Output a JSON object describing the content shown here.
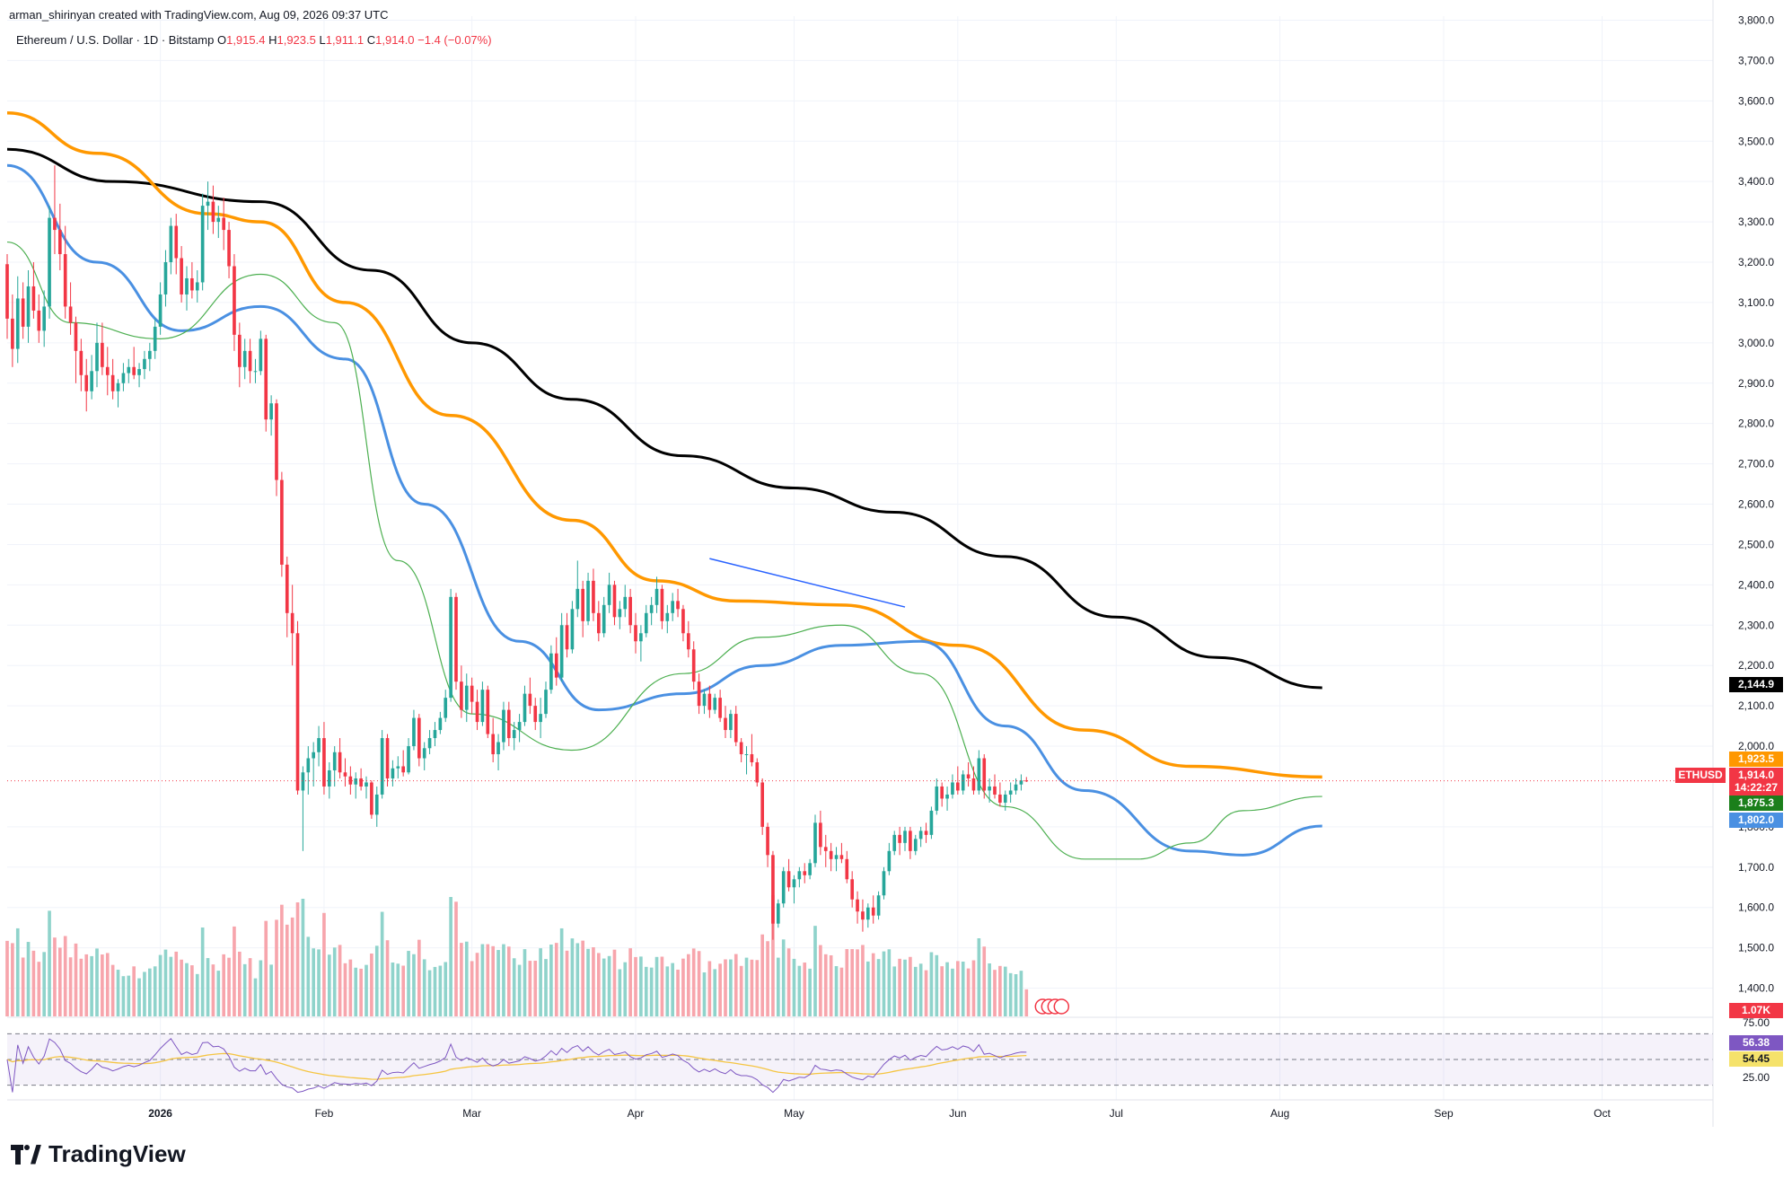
{
  "credit": "arman_shirinyan created with TradingView.com, Aug 09, 2026 09:37 UTC",
  "legend": {
    "instrument": "Ethereum / U.S. Dollar · 1D · Bitstamp",
    "o_label": "O",
    "o": "1,915.4",
    "h_label": "H",
    "h": "1,923.5",
    "l_label": "L",
    "l": "1,911.1",
    "c_label": "C",
    "c": "1,914.0",
    "change": "−1.4 (−0.07%)"
  },
  "brand": "TradingView",
  "price_tags": {
    "sma200": "2,144.9",
    "sma100": "1,923.5",
    "symbol": "ETHUSD",
    "last": "1,914.0",
    "countdown": "14:22:27",
    "ema20": "1,875.3",
    "sma50": "1,802.0",
    "volume": "1.07K",
    "rsi": "56.38",
    "rsi_ma": "54.45",
    "rsi_level": "75.00",
    "rsi_low": "25.00"
  },
  "colors": {
    "up": "#26a69a",
    "down": "#f23645",
    "vol_up": "#8fd3cb",
    "vol_down": "#f7a5ac",
    "sma200": "#000000",
    "sma100": "#ff9800",
    "sma50": "#4a90e2",
    "ema20": "#4caf50",
    "trendline": "#2962ff",
    "rsi_line": "#7e57c2",
    "rsi_ma": "#f5c542"
  },
  "chart_data": {
    "type": "candlestick",
    "title": "Ethereum / U.S. Dollar · 1D · Bitstamp",
    "x_tick_labels": [
      "2026",
      "Feb",
      "Mar",
      "Apr",
      "May",
      "Jun",
      "Jul",
      "Aug",
      "Sep",
      "Oct"
    ],
    "x_ticks": [
      "2026-01-01",
      "2026-02-01",
      "2026-03-01",
      "2026-04-01",
      "2026-05-01",
      "2026-06-01",
      "2026-07-01",
      "2026-08-01",
      "2026-09-01",
      "2026-10-01"
    ],
    "x_range": [
      "2025-12-03",
      "2026-10-22"
    ],
    "y_ticks": [
      1400,
      1500,
      1600,
      1700,
      1800,
      2000,
      2100,
      2200,
      2300,
      2400,
      2500,
      2600,
      2700,
      2800,
      2900,
      3000,
      3100,
      3200,
      3300,
      3400,
      3500,
      3600,
      3700,
      3800
    ],
    "y_range": [
      1330,
      3810
    ],
    "grid": true,
    "candles_ohlc_from": "2025-12-03",
    "candles_ohlc": [
      [
        3195,
        3220,
        3010,
        3060
      ],
      [
        3060,
        3120,
        2940,
        2985
      ],
      [
        2985,
        3165,
        2950,
        3110
      ],
      [
        3110,
        3150,
        3010,
        3040
      ],
      [
        3040,
        3180,
        3000,
        3140
      ],
      [
        3140,
        3200,
        3060,
        3080
      ],
      [
        3080,
        3120,
        3000,
        3030
      ],
      [
        3030,
        3130,
        2990,
        3090
      ],
      [
        3090,
        3340,
        3060,
        3310
      ],
      [
        3310,
        3440,
        3220,
        3280
      ],
      [
        3280,
        3345,
        3180,
        3220
      ],
      [
        3220,
        3290,
        3060,
        3090
      ],
      [
        3090,
        3150,
        3020,
        3050
      ],
      [
        3050,
        3065,
        2900,
        2980
      ],
      [
        2980,
        3010,
        2880,
        2920
      ],
      [
        2920,
        2960,
        2830,
        2880
      ],
      [
        2880,
        2970,
        2860,
        2930
      ],
      [
        2930,
        3050,
        2890,
        3000
      ],
      [
        3000,
        3050,
        2920,
        2940
      ],
      [
        2940,
        2990,
        2870,
        2920
      ],
      [
        2920,
        2960,
        2860,
        2880
      ],
      [
        2880,
        2910,
        2840,
        2900
      ],
      [
        2900,
        2950,
        2880,
        2925
      ],
      [
        2925,
        2960,
        2900,
        2940
      ],
      [
        2940,
        2990,
        2910,
        2920
      ],
      [
        2920,
        2950,
        2890,
        2935
      ],
      [
        2935,
        2980,
        2910,
        2960
      ],
      [
        2960,
        3000,
        2930,
        2980
      ],
      [
        2980,
        3060,
        2960,
        3040
      ],
      [
        3040,
        3150,
        3020,
        3120
      ],
      [
        3120,
        3230,
        3090,
        3200
      ],
      [
        3200,
        3310,
        3170,
        3290
      ],
      [
        3290,
        3320,
        3170,
        3210
      ],
      [
        3210,
        3240,
        3100,
        3120
      ],
      [
        3120,
        3190,
        3080,
        3160
      ],
      [
        3160,
        3200,
        3110,
        3130
      ],
      [
        3130,
        3180,
        3100,
        3150
      ],
      [
        3150,
        3370,
        3130,
        3340
      ],
      [
        3340,
        3400,
        3280,
        3350
      ],
      [
        3350,
        3390,
        3270,
        3300
      ],
      [
        3300,
        3340,
        3260,
        3310
      ],
      [
        3310,
        3360,
        3230,
        3280
      ],
      [
        3280,
        3300,
        3160,
        3190
      ],
      [
        3190,
        3220,
        2980,
        3020
      ],
      [
        3020,
        3050,
        2890,
        2940
      ],
      [
        2940,
        3010,
        2910,
        2980
      ],
      [
        2980,
        3010,
        2900,
        2930
      ],
      [
        2930,
        2960,
        2900,
        2930
      ],
      [
        2930,
        3030,
        2920,
        3010
      ],
      [
        3010,
        3020,
        2780,
        2810
      ],
      [
        2810,
        2870,
        2770,
        2850
      ],
      [
        2850,
        2860,
        2620,
        2660
      ],
      [
        2660,
        2680,
        2420,
        2450
      ],
      [
        2450,
        2470,
        2270,
        2330
      ],
      [
        2330,
        2400,
        2200,
        2280
      ],
      [
        2280,
        2310,
        1880,
        1890
      ],
      [
        1890,
        1950,
        1740,
        1935
      ],
      [
        1935,
        2000,
        1880,
        1970
      ],
      [
        1970,
        2010,
        1900,
        1985
      ],
      [
        1985,
        2050,
        1950,
        2020
      ],
      [
        2020,
        2060,
        1880,
        1900
      ],
      [
        1900,
        1960,
        1870,
        1940
      ],
      [
        1940,
        2000,
        1900,
        1985
      ],
      [
        1985,
        2020,
        1920,
        1935
      ],
      [
        1935,
        1970,
        1900,
        1925
      ],
      [
        1925,
        1950,
        1880,
        1905
      ],
      [
        1905,
        1935,
        1870,
        1920
      ],
      [
        1920,
        1945,
        1890,
        1900
      ],
      [
        1900,
        1925,
        1870,
        1910
      ],
      [
        1910,
        1915,
        1820,
        1830
      ],
      [
        1830,
        1900,
        1800,
        1880
      ],
      [
        1880,
        2040,
        1870,
        2020
      ],
      [
        2020,
        2030,
        1900,
        1920
      ],
      [
        1920,
        1965,
        1900,
        1945
      ],
      [
        1945,
        1975,
        1920,
        1950
      ],
      [
        1950,
        1990,
        1925,
        1935
      ],
      [
        1935,
        2020,
        1930,
        2000
      ],
      [
        2000,
        2090,
        1990,
        2070
      ],
      [
        2070,
        2080,
        1950,
        1970
      ],
      [
        1970,
        2010,
        1940,
        1995
      ],
      [
        1995,
        2040,
        1980,
        2020
      ],
      [
        2020,
        2060,
        2000,
        2040
      ],
      [
        2040,
        2085,
        2030,
        2070
      ],
      [
        2070,
        2140,
        2060,
        2120
      ],
      [
        2120,
        2390,
        2110,
        2370
      ],
      [
        2370,
        2380,
        2140,
        2160
      ],
      [
        2160,
        2200,
        2070,
        2090
      ],
      [
        2090,
        2180,
        2060,
        2150
      ],
      [
        2150,
        2170,
        2080,
        2110
      ],
      [
        2110,
        2140,
        2040,
        2060
      ],
      [
        2060,
        2160,
        2050,
        2140
      ],
      [
        2140,
        2150,
        2020,
        2030
      ],
      [
        2030,
        2070,
        1960,
        1980
      ],
      [
        1980,
        2030,
        1940,
        2010
      ],
      [
        2010,
        2110,
        1990,
        2090
      ],
      [
        2090,
        2110,
        2000,
        2020
      ],
      [
        2020,
        2060,
        1990,
        2040
      ],
      [
        2040,
        2080,
        2010,
        2060
      ],
      [
        2060,
        2150,
        2050,
        2130
      ],
      [
        2130,
        2170,
        2080,
        2100
      ],
      [
        2100,
        2120,
        2040,
        2060
      ],
      [
        2060,
        2120,
        2020,
        2080
      ],
      [
        2080,
        2160,
        2070,
        2140
      ],
      [
        2140,
        2250,
        2130,
        2230
      ],
      [
        2230,
        2270,
        2150,
        2170
      ],
      [
        2170,
        2330,
        2160,
        2300
      ],
      [
        2300,
        2330,
        2220,
        2240
      ],
      [
        2240,
        2360,
        2230,
        2340
      ],
      [
        2340,
        2460,
        2320,
        2390
      ],
      [
        2390,
        2410,
        2270,
        2310
      ],
      [
        2310,
        2430,
        2300,
        2410
      ],
      [
        2410,
        2440,
        2310,
        2330
      ],
      [
        2330,
        2360,
        2260,
        2280
      ],
      [
        2280,
        2370,
        2270,
        2350
      ],
      [
        2350,
        2430,
        2330,
        2400
      ],
      [
        2400,
        2410,
        2300,
        2320
      ],
      [
        2320,
        2360,
        2290,
        2340
      ],
      [
        2340,
        2400,
        2320,
        2370
      ],
      [
        2370,
        2390,
        2280,
        2300
      ],
      [
        2300,
        2330,
        2230,
        2260
      ],
      [
        2260,
        2300,
        2210,
        2280
      ],
      [
        2280,
        2350,
        2270,
        2330
      ],
      [
        2330,
        2370,
        2300,
        2350
      ],
      [
        2350,
        2420,
        2330,
        2390
      ],
      [
        2390,
        2400,
        2290,
        2310
      ],
      [
        2310,
        2350,
        2280,
        2330
      ],
      [
        2330,
        2380,
        2310,
        2360
      ],
      [
        2360,
        2390,
        2320,
        2340
      ],
      [
        2340,
        2350,
        2260,
        2280
      ],
      [
        2280,
        2310,
        2220,
        2240
      ],
      [
        2240,
        2260,
        2140,
        2160
      ],
      [
        2160,
        2180,
        2080,
        2100
      ],
      [
        2100,
        2140,
        2080,
        2130
      ],
      [
        2130,
        2150,
        2070,
        2090
      ],
      [
        2090,
        2130,
        2080,
        2120
      ],
      [
        2120,
        2140,
        2060,
        2070
      ],
      [
        2070,
        2100,
        2020,
        2040
      ],
      [
        2040,
        2090,
        2020,
        2080
      ],
      [
        2080,
        2100,
        2000,
        2010
      ],
      [
        2010,
        2020,
        1960,
        1980
      ],
      [
        1980,
        2000,
        1930,
        1980
      ],
      [
        1980,
        2030,
        1950,
        1960
      ],
      [
        1960,
        1970,
        1900,
        1910
      ],
      [
        1910,
        1920,
        1780,
        1800
      ],
      [
        1800,
        1810,
        1700,
        1730
      ],
      [
        1730,
        1740,
        1520,
        1560
      ],
      [
        1560,
        1620,
        1550,
        1610
      ],
      [
        1610,
        1700,
        1600,
        1690
      ],
      [
        1690,
        1720,
        1640,
        1650
      ],
      [
        1650,
        1680,
        1610,
        1670
      ],
      [
        1670,
        1700,
        1650,
        1690
      ],
      [
        1690,
        1710,
        1660,
        1680
      ],
      [
        1680,
        1720,
        1670,
        1710
      ],
      [
        1710,
        1830,
        1700,
        1810
      ],
      [
        1810,
        1840,
        1730,
        1750
      ],
      [
        1750,
        1780,
        1700,
        1740
      ],
      [
        1740,
        1760,
        1690,
        1720
      ],
      [
        1720,
        1750,
        1690,
        1730
      ],
      [
        1730,
        1760,
        1710,
        1720
      ],
      [
        1720,
        1740,
        1660,
        1670
      ],
      [
        1670,
        1690,
        1600,
        1620
      ],
      [
        1620,
        1640,
        1560,
        1590
      ],
      [
        1590,
        1620,
        1540,
        1570
      ],
      [
        1570,
        1610,
        1550,
        1600
      ],
      [
        1600,
        1630,
        1560,
        1580
      ],
      [
        1580,
        1640,
        1570,
        1630
      ],
      [
        1630,
        1700,
        1620,
        1690
      ],
      [
        1690,
        1760,
        1680,
        1740
      ],
      [
        1740,
        1790,
        1730,
        1780
      ],
      [
        1780,
        1800,
        1730,
        1760
      ],
      [
        1760,
        1800,
        1740,
        1790
      ],
      [
        1790,
        1800,
        1720,
        1740
      ],
      [
        1740,
        1780,
        1730,
        1770
      ],
      [
        1770,
        1800,
        1750,
        1790
      ],
      [
        1790,
        1810,
        1760,
        1780
      ],
      [
        1780,
        1850,
        1770,
        1840
      ],
      [
        1840,
        1920,
        1830,
        1900
      ],
      [
        1900,
        1910,
        1850,
        1870
      ],
      [
        1870,
        1900,
        1840,
        1880
      ],
      [
        1880,
        1930,
        1870,
        1910
      ],
      [
        1910,
        1950,
        1880,
        1890
      ],
      [
        1890,
        1940,
        1880,
        1930
      ],
      [
        1930,
        1960,
        1900,
        1920
      ],
      [
        1920,
        1950,
        1880,
        1890
      ],
      [
        1890,
        1990,
        1880,
        1970
      ],
      [
        1970,
        1980,
        1870,
        1890
      ],
      [
        1890,
        1920,
        1860,
        1900
      ],
      [
        1900,
        1930,
        1870,
        1880
      ],
      [
        1880,
        1910,
        1850,
        1860
      ],
      [
        1860,
        1890,
        1840,
        1880
      ],
      [
        1880,
        1910,
        1860,
        1890
      ],
      [
        1890,
        1920,
        1880,
        1905
      ],
      [
        1905,
        1930,
        1890,
        1915
      ],
      [
        1915,
        1923.5,
        1911.1,
        1914
      ]
    ],
    "sma200_anchors": [
      [
        "2025-12-03",
        3480
      ],
      [
        "2025-12-23",
        3400
      ],
      [
        "2026-01-20",
        3350
      ],
      [
        "2026-02-10",
        3180
      ],
      [
        "2026-03-01",
        3000
      ],
      [
        "2026-03-20",
        2860
      ],
      [
        "2026-04-10",
        2720
      ],
      [
        "2026-05-01",
        2640
      ],
      [
        "2026-05-20",
        2580
      ],
      [
        "2026-06-10",
        2470
      ],
      [
        "2026-07-01",
        2320
      ],
      [
        "2026-07-20",
        2220
      ],
      [
        "2026-08-09",
        2144.9
      ]
    ],
    "sma100_anchors": [
      [
        "2025-12-03",
        3570
      ],
      [
        "2025-12-20",
        3470
      ],
      [
        "2026-01-10",
        3320
      ],
      [
        "2026-01-20",
        3300
      ],
      [
        "2026-02-05",
        3100
      ],
      [
        "2026-02-25",
        2820
      ],
      [
        "2026-03-20",
        2560
      ],
      [
        "2026-04-05",
        2410
      ],
      [
        "2026-04-20",
        2360
      ],
      [
        "2026-05-10",
        2350
      ],
      [
        "2026-06-01",
        2250
      ],
      [
        "2026-06-25",
        2040
      ],
      [
        "2026-07-15",
        1950
      ],
      [
        "2026-08-09",
        1923.5
      ]
    ],
    "sma50_anchors": [
      [
        "2025-12-03",
        3440
      ],
      [
        "2025-12-20",
        3200
      ],
      [
        "2026-01-05",
        3030
      ],
      [
        "2026-01-20",
        3090
      ],
      [
        "2026-02-05",
        2960
      ],
      [
        "2026-02-20",
        2600
      ],
      [
        "2026-03-10",
        2260
      ],
      [
        "2026-03-25",
        2090
      ],
      [
        "2026-04-10",
        2130
      ],
      [
        "2026-04-25",
        2200
      ],
      [
        "2026-05-10",
        2250
      ],
      [
        "2026-05-25",
        2260
      ],
      [
        "2026-06-10",
        2050
      ],
      [
        "2026-06-25",
        1890
      ],
      [
        "2026-07-15",
        1740
      ],
      [
        "2026-07-25",
        1730
      ],
      [
        "2026-08-09",
        1802
      ]
    ],
    "ema20_anchors": [
      [
        "2025-12-03",
        3250
      ],
      [
        "2025-12-15",
        3050
      ],
      [
        "2026-01-01",
        3010
      ],
      [
        "2026-01-20",
        3170
      ],
      [
        "2026-02-03",
        3050
      ],
      [
        "2026-02-15",
        2460
      ],
      [
        "2026-03-01",
        2080
      ],
      [
        "2026-03-20",
        1990
      ],
      [
        "2026-04-10",
        2180
      ],
      [
        "2026-04-25",
        2270
      ],
      [
        "2026-05-10",
        2300
      ],
      [
        "2026-05-25",
        2180
      ],
      [
        "2026-06-10",
        1850
      ],
      [
        "2026-06-25",
        1720
      ],
      [
        "2026-07-05",
        1720
      ],
      [
        "2026-07-15",
        1760
      ],
      [
        "2026-07-25",
        1840
      ],
      [
        "2026-08-09",
        1875.3
      ]
    ],
    "trendline": [
      [
        "2026-04-15",
        2465
      ],
      [
        "2026-05-22",
        2345
      ]
    ],
    "rsi_level": 75,
    "rsi_low": 25,
    "last_price": 1914.0
  }
}
